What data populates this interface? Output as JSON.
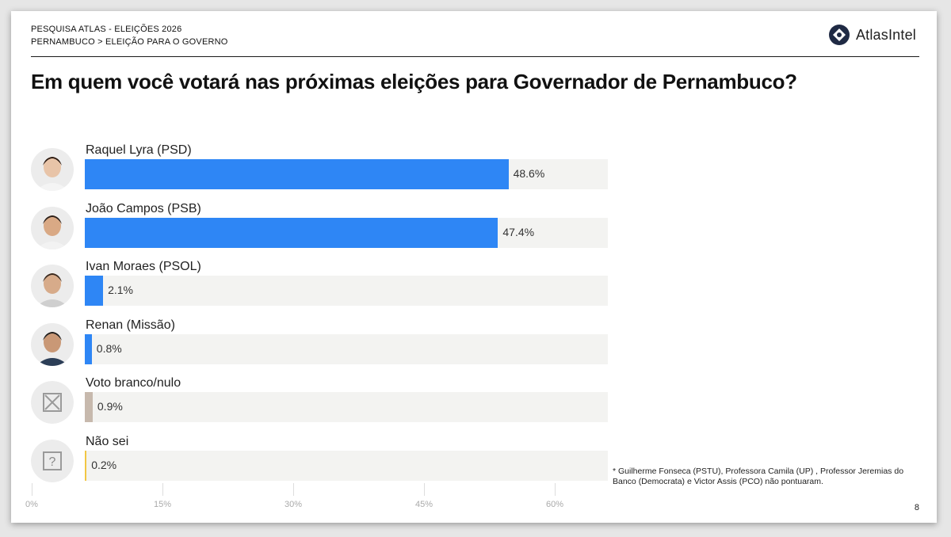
{
  "header": {
    "line1": "PESQUISA ATLAS - ELEIÇÕES 2026",
    "line2": "PERNAMBUCO > ELEIÇÃO PARA O GOVERNO",
    "logo_text": "AtlasIntel"
  },
  "question": "Em quem você votará nas próximas eleições para Governador de Pernambuco?",
  "footnote": "* Guilherme Fonseca (PSTU), Professora Camila (UP) , Professor Jeremias do Banco (Democrata) e Victor Assis (PCO)  não pontuaram.",
  "page_number": "8",
  "colors": {
    "candidate_bar": "#2e86f5",
    "blank_bar": "#c7b9ad",
    "dontknow_bar": "#f2c744",
    "track": "#f3f3f1"
  },
  "chart_data": {
    "type": "bar",
    "orientation": "horizontal",
    "categories": [
      "Raquel Lyra (PSD)",
      "João Campos (PSB)",
      "Ivan Moraes (PSOL)",
      "Renan (Missão)",
      "Voto branco/nulo",
      "Não sei"
    ],
    "values": [
      48.6,
      47.4,
      2.1,
      0.8,
      0.9,
      0.2
    ],
    "value_labels": [
      "48.6%",
      "47.4%",
      "2.1%",
      "0.8%",
      "0.9%",
      "0.2%"
    ],
    "icons": [
      "photo",
      "photo",
      "photo",
      "photo",
      "x-box-icon",
      "question-box-icon"
    ],
    "xlim": [
      0,
      60
    ],
    "xticks": [
      "0%",
      "15%",
      "30%",
      "45%",
      "60%"
    ],
    "title": "Em quem você votará nas próximas eleições para Governador de Pernambuco?",
    "xlabel": "",
    "ylabel": ""
  }
}
